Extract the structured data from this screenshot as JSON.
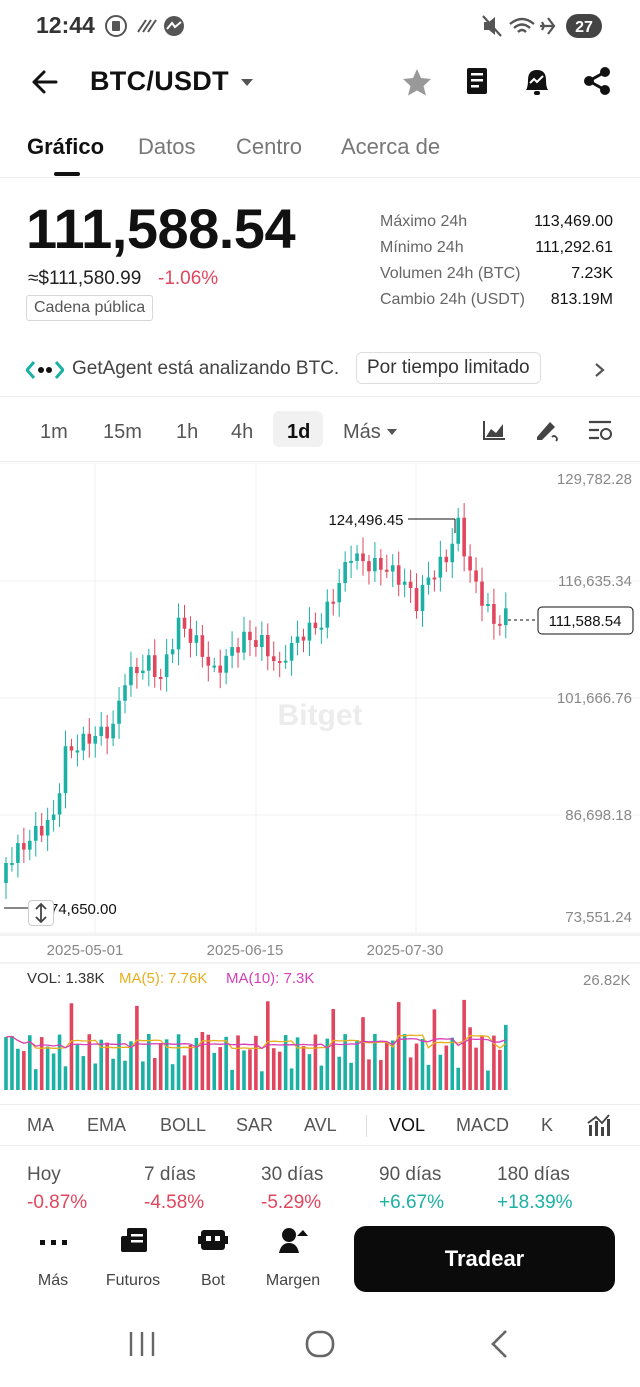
{
  "status_bar": {
    "time": "12:44",
    "battery": "27"
  },
  "header": {
    "pair": "BTC/USDT"
  },
  "tabs": [
    "Gráfico",
    "Datos",
    "Centro",
    "Acerca de"
  ],
  "ticker": {
    "last_price": "111,588.54",
    "approx_usd": "≈$111,580.99",
    "change_24h": "-1.06%",
    "chain_label": "Cadena pública",
    "stats": [
      {
        "label": "Máximo 24h",
        "value": "113,469.00"
      },
      {
        "label": "Mínimo 24h",
        "value": "111,292.61"
      },
      {
        "label": "Volumen 24h (BTC)",
        "value": "7.23K"
      },
      {
        "label": "Cambio 24h (USDT)",
        "value": "813.19M"
      }
    ]
  },
  "agent_banner": {
    "text": "GetAgent está analizando BTC.",
    "chip": "Por tiempo limitado"
  },
  "intervals": {
    "items": [
      "1m",
      "15m",
      "1h",
      "4h",
      "1d"
    ],
    "more": "Más",
    "active": "1d"
  },
  "chart_data": {
    "type": "candlestick",
    "x_ticks": [
      "2025-05-01",
      "2025-06-15",
      "2025-07-30"
    ],
    "y_ticks": [
      "129,782.28",
      "116,635.34",
      "101,666.76",
      "86,698.18",
      "73,551.24"
    ],
    "high_marker": "124,496.45",
    "low_marker": "74,650.00",
    "current_price": "111,588.54",
    "watermark": "Bitget",
    "up_color": "#1bb1a4",
    "down_color": "#e0465e",
    "volume": {
      "vol_label": "VOL: 1.38K",
      "ma5_label": "MA(5): 7.76K",
      "ma10_label": "MA(10): 7.3K",
      "max_label": "26.82K",
      "ma5_color": "#e8b01e",
      "ma10_color": "#d63fb9"
    }
  },
  "indicators": [
    "MA",
    "EMA",
    "BOLL",
    "SAR",
    "AVL",
    "VOL",
    "MACD",
    "K"
  ],
  "performance": [
    {
      "label": "Hoy",
      "value": "-0.87%"
    },
    {
      "label": "7 días",
      "value": "-4.58%"
    },
    {
      "label": "30 días",
      "value": "-5.29%"
    },
    {
      "label": "90 días",
      "value": "+6.67%"
    },
    {
      "label": "180 días",
      "value": "+18.39%"
    }
  ],
  "bottom_bar": {
    "items": [
      "Más",
      "Futuros",
      "Bot",
      "Margen"
    ],
    "trade_label": "Tradear"
  }
}
